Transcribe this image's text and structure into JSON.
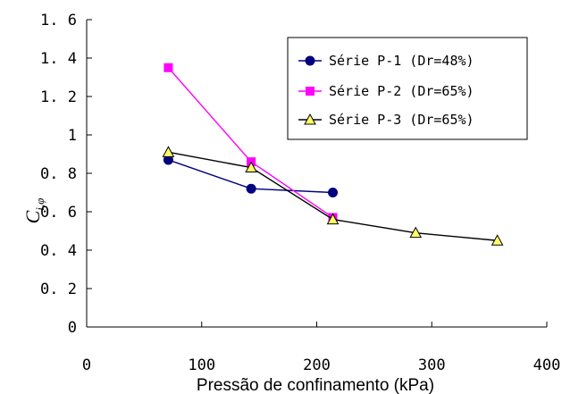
{
  "chart_data": {
    "type": "line",
    "xlabel": "Pressão de confinamento (kPa)",
    "ylabel": {
      "main": "C",
      "sub": "i,φ"
    },
    "xlim": [
      0,
      400
    ],
    "ylim": [
      0,
      1.6
    ],
    "xticks": [
      "0",
      "100",
      "200",
      "300",
      "400"
    ],
    "yticks": [
      "0",
      "0. 2",
      "0. 4",
      "0. 6",
      "0. 8",
      "1",
      "1. 2",
      "1. 4",
      "1. 6"
    ],
    "grid": false,
    "legend_position": "top-right",
    "series": [
      {
        "name": "Série P-1 (Dr=48%)",
        "color": "#000080",
        "marker": "circle",
        "x": [
          71,
          143,
          214
        ],
        "y": [
          0.87,
          0.72,
          0.7
        ]
      },
      {
        "name": "Série P-2 (Dr=65%)",
        "color": "#ff00ff",
        "marker": "square",
        "x": [
          71,
          143,
          214
        ],
        "y": [
          1.35,
          0.86,
          0.57
        ]
      },
      {
        "name": "Série P-3 (Dr=65%)",
        "color": "#000000",
        "marker": "triangle",
        "marker_fill": "#ffff66",
        "x": [
          71,
          143,
          214,
          286,
          357
        ],
        "y": [
          0.91,
          0.83,
          0.56,
          0.49,
          0.45
        ]
      }
    ]
  }
}
